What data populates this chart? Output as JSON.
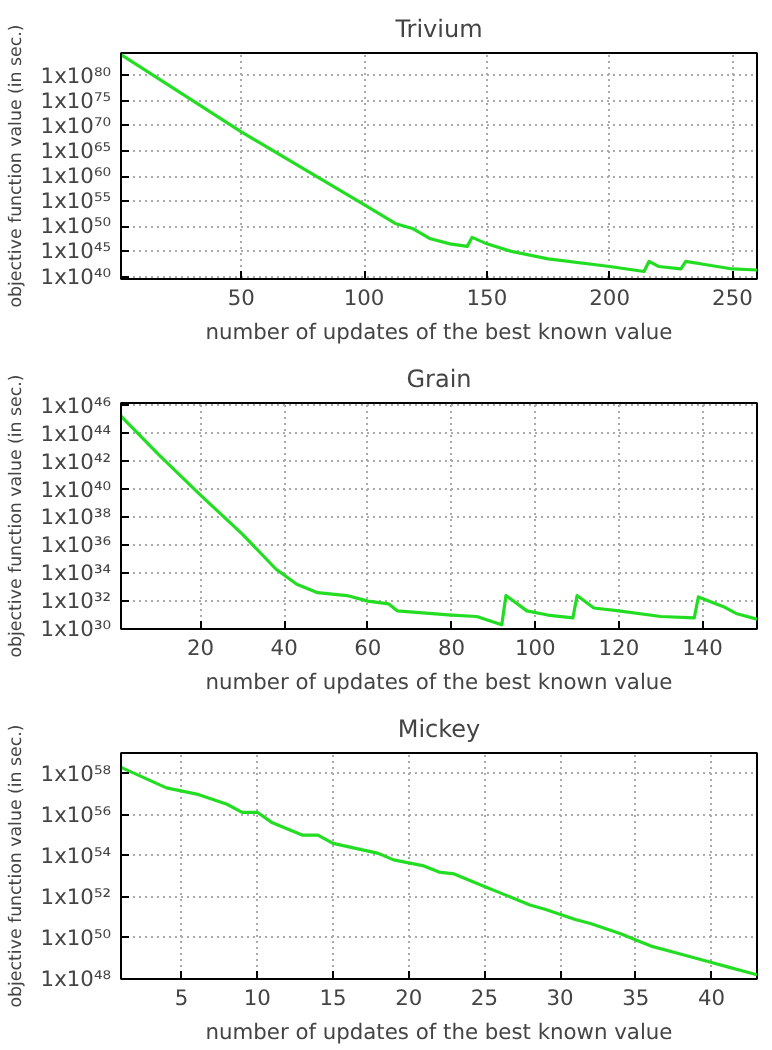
{
  "chart_data": [
    {
      "type": "line",
      "title": "Trivium",
      "xlabel": "number of updates of the best known value",
      "ylabel": "objective function value (in sec.)",
      "log": "y",
      "grid": true,
      "marker": "none",
      "line_style": "solid",
      "xlim": [
        1,
        260
      ],
      "xticks": [
        50,
        100,
        150,
        200,
        250
      ],
      "ylim": [
        3.2e+39,
        3.2e+84
      ],
      "yticks": [
        {
          "value": 1e+40,
          "label": "1x10⁴⁰"
        },
        {
          "value": 1e+45,
          "label": "1x10⁴⁵"
        },
        {
          "value": 1e+50,
          "label": "1x10⁵⁰"
        },
        {
          "value": 1e+55,
          "label": "1x10⁵⁵"
        },
        {
          "value": 1e+60,
          "label": "1x10⁶⁰"
        },
        {
          "value": 1e+65,
          "label": "1x10⁶⁵"
        },
        {
          "value": 1e+70,
          "label": "1x10⁷⁰"
        },
        {
          "value": 1e+75,
          "label": "1x10⁷⁵"
        },
        {
          "value": 1e+80,
          "label": "1x10⁸⁰"
        }
      ],
      "series": [
        {
          "color": "#22dd22",
          "x": [
            1,
            50,
            100,
            113,
            120,
            127,
            135,
            142,
            144,
            150,
            160,
            175,
            200,
            214,
            216,
            220,
            229,
            231,
            240,
            250,
            260
          ],
          "values": [
            1.6e+84,
            6.3e+68,
            2e+54,
            3.2e+50,
            3.2e+49,
            3.2e+47,
            3.2e+46,
            1e+46,
            6.3e+47,
            3.2e+46,
            1e+45,
            3.2e+43,
            1e+42,
            1e+41,
            1e+43,
            1e+42,
            3.2e+41,
            1e+43,
            2e+42,
            3.2e+41,
            2e+41
          ]
        }
      ]
    },
    {
      "type": "line",
      "title": "Grain",
      "xlabel": "number of updates of the best known value",
      "ylabel": "objective function value (in sec.)",
      "log": "y",
      "grid": true,
      "marker": "none",
      "line_style": "solid",
      "xlim": [
        1,
        153
      ],
      "xticks": [
        20,
        40,
        60,
        80,
        100,
        120,
        140
      ],
      "ylim": [
        1e+30,
        1.6e+46
      ],
      "yticks": [
        {
          "value": 1e+30,
          "label": "1x10³⁰"
        },
        {
          "value": 1e+32,
          "label": "1x10³²"
        },
        {
          "value": 1e+34,
          "label": "1x10³⁴"
        },
        {
          "value": 1e+36,
          "label": "1x10³⁶"
        },
        {
          "value": 1e+38,
          "label": "1x10³⁸"
        },
        {
          "value": 1e+40,
          "label": "1x10⁴⁰"
        },
        {
          "value": 1e+42,
          "label": "1x10⁴²"
        },
        {
          "value": 1e+44,
          "label": "1x10⁴⁴"
        },
        {
          "value": 1e+46,
          "label": "1x10⁴⁶"
        }
      ],
      "series": [
        {
          "color": "#22dd22",
          "x": [
            1,
            10,
            20,
            30,
            38,
            43,
            48,
            55,
            60,
            65,
            67,
            80,
            86,
            92,
            93,
            98,
            103,
            109,
            110,
            114,
            120,
            130,
            138,
            139,
            145,
            148,
            153
          ],
          "values": [
            1.8e+45,
            3.2e+42,
            4e+39,
            6.3e+36,
            2e+34,
            1.6e+33,
            4e+32,
            2.5e+32,
            1e+32,
            6.3e+31,
            2e+31,
            1e+31,
            7.9e+30,
            2e+30,
            2.5e+32,
            2e+31,
            1e+31,
            6.3e+30,
            2.5e+32,
            3.2e+31,
            2e+31,
            7.9e+30,
            6.3e+30,
            2e+32,
            4e+31,
            1.3e+31,
            5e+30
          ]
        }
      ]
    },
    {
      "type": "line",
      "title": "Mickey",
      "xlabel": "number of updates of the best known value",
      "ylabel": "objective function value (in sec.)",
      "log": "y",
      "grid": true,
      "marker": "none",
      "line_style": "solid",
      "xlim": [
        1,
        43
      ],
      "xticks": [
        5,
        10,
        15,
        20,
        25,
        30,
        35,
        40
      ],
      "ylim": [
        1e+48,
        1e+59
      ],
      "yticks": [
        {
          "value": 1e+48,
          "label": "1x10⁴⁸"
        },
        {
          "value": 1e+50,
          "label": "1x10⁵⁰"
        },
        {
          "value": 1e+52,
          "label": "1x10⁵²"
        },
        {
          "value": 1e+54,
          "label": "1x10⁵⁴"
        },
        {
          "value": 1e+56,
          "label": "1x10⁵⁶"
        },
        {
          "value": 1e+58,
          "label": "1x10⁵⁸"
        }
      ],
      "series": [
        {
          "color": "#22dd22",
          "x": [
            1,
            4,
            6,
            8,
            9,
            10,
            11,
            13,
            14,
            15,
            18,
            19,
            21,
            22,
            23,
            25,
            26,
            28,
            29,
            31,
            32,
            34,
            35,
            36,
            38,
            40,
            41,
            43
          ],
          "values": [
            2e+58,
            2e+57,
            1e+57,
            3.2e+56,
            1.3e+56,
            1.3e+56,
            4e+55,
            1e+55,
            1e+55,
            4e+54,
            1.3e+54,
            6.3e+53,
            3.2e+53,
            1.6e+53,
            1.3e+53,
            3.2e+52,
            1.6e+52,
            4e+51,
            2.5e+51,
            7.9e+50,
            5e+50,
            1.6e+50,
            7.9e+49,
            4e+49,
            1.6e+49,
            6.3e+48,
            4e+48,
            1.6e+48
          ]
        }
      ]
    }
  ]
}
